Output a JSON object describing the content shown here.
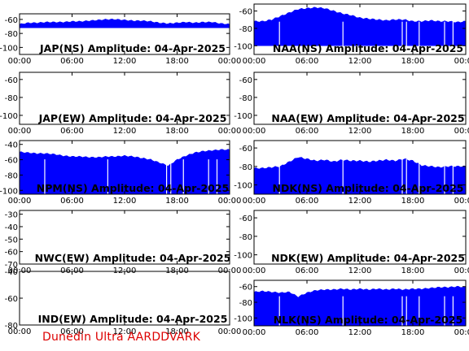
{
  "footer": "Dunedin Ultra AARDDVARK",
  "colors": {
    "trace": "#0000ff",
    "axis": "#000000",
    "footer": "#dd0000"
  },
  "chart_data": [
    {
      "type": "area",
      "title": "JAP(NS) Amplitude: 04-Apr-2025",
      "xlabel": "",
      "ylabel": "",
      "xticks": [
        "00:00",
        "06:00",
        "12:00",
        "18:00",
        "00:00"
      ],
      "yticks": [
        -60,
        -80,
        -100
      ],
      "ylim": [
        -110,
        -52
      ],
      "x": [
        0,
        1,
        2,
        3,
        4,
        5,
        6,
        7,
        8,
        9,
        10,
        11,
        12,
        13,
        14,
        15,
        16,
        17,
        18,
        19,
        20,
        21,
        22,
        23,
        24
      ],
      "y": [
        -67,
        -65,
        -65,
        -64,
        -64,
        -64,
        -63,
        -63,
        -62,
        -61,
        -60,
        -60,
        -61,
        -62,
        -62,
        -63,
        -65,
        -66,
        -65,
        -64,
        -65,
        -64,
        -64,
        -66,
        -67
      ],
      "lower": -72,
      "has_data": true
    },
    {
      "type": "area",
      "title": "NAA(NS) Amplitude: 04-Apr-2025",
      "xlabel": "",
      "ylabel": "",
      "xticks": [
        "00:00",
        "06:00",
        "12:00",
        "18:00",
        "00:00"
      ],
      "yticks": [
        -60,
        -80,
        -100
      ],
      "ylim": [
        -110,
        -52
      ],
      "x": [
        0,
        1,
        2,
        3,
        4,
        5,
        6,
        7,
        8,
        9,
        10,
        11,
        12,
        13,
        14,
        15,
        16,
        17,
        18,
        19,
        20,
        21,
        22,
        23,
        24
      ],
      "y": [
        -72,
        -72,
        -70,
        -66,
        -62,
        -58,
        -57,
        -56,
        -57,
        -60,
        -63,
        -65,
        -68,
        -69,
        -70,
        -71,
        -70,
        -70,
        -72,
        -72,
        -71,
        -72,
        -72,
        -73,
        -72
      ],
      "lower": -100,
      "has_data": true
    },
    {
      "type": "area",
      "title": "JAP(EW) Amplitude: 04-Apr-2025",
      "xlabel": "",
      "ylabel": "",
      "xticks": [
        "00:00",
        "06:00",
        "12:00",
        "18:00",
        "00:00"
      ],
      "yticks": [
        -60,
        -80,
        -100
      ],
      "ylim": [
        -110,
        -52
      ],
      "x": [],
      "y": [],
      "lower": -110,
      "has_data": false
    },
    {
      "type": "area",
      "title": "NAA(EW) Amplitude: 04-Apr-2025",
      "xlabel": "",
      "ylabel": "",
      "xticks": [
        "00:00",
        "06:00",
        "12:00",
        "18:00",
        "00:00"
      ],
      "yticks": [
        -60,
        -80,
        -100
      ],
      "ylim": [
        -110,
        -52
      ],
      "x": [],
      "y": [],
      "lower": -110,
      "has_data": false
    },
    {
      "type": "area",
      "title": "NPM(NS) Amplitude: 04-Apr-2025",
      "xlabel": "",
      "ylabel": "",
      "xticks": [
        "00:00",
        "06:00",
        "12:00",
        "18:00",
        "00:00"
      ],
      "yticks": [
        -40,
        -60,
        -80,
        -100
      ],
      "ylim": [
        -105,
        -35
      ],
      "x": [
        0,
        1,
        2,
        3,
        4,
        5,
        6,
        7,
        8,
        9,
        10,
        11,
        12,
        13,
        14,
        15,
        16,
        17,
        18,
        19,
        20,
        21,
        22,
        23,
        24
      ],
      "y": [
        -50,
        -51,
        -52,
        -52,
        -53,
        -55,
        -56,
        -56,
        -57,
        -57,
        -56,
        -56,
        -55,
        -56,
        -58,
        -60,
        -64,
        -68,
        -60,
        -55,
        -51,
        -49,
        -48,
        -47,
        -47
      ],
      "lower": -105,
      "has_data": true
    },
    {
      "type": "area",
      "title": "NDK(NS) Amplitude: 04-Apr-2025",
      "xlabel": "",
      "ylabel": "",
      "xticks": [
        "00:00",
        "06:00",
        "12:00",
        "18:00",
        "00:00"
      ],
      "yticks": [
        -60,
        -80,
        -100
      ],
      "ylim": [
        -110,
        -52
      ],
      "x": [
        0,
        1,
        2,
        3,
        4,
        5,
        6,
        7,
        8,
        9,
        10,
        11,
        12,
        13,
        14,
        15,
        16,
        17,
        18,
        19,
        20,
        21,
        22,
        23,
        24
      ],
      "y": [
        -82,
        -82,
        -81,
        -80,
        -75,
        -70,
        -72,
        -74,
        -73,
        -75,
        -73,
        -74,
        -74,
        -75,
        -74,
        -73,
        -74,
        -72,
        -74,
        -79,
        -80,
        -81,
        -80,
        -80,
        -80
      ],
      "lower": -110,
      "has_data": true
    },
    {
      "type": "area",
      "title": "NWC(EW) Amplitude: 04-Apr-2025",
      "xlabel": "",
      "ylabel": "",
      "xticks": [
        "00:00",
        "06:00",
        "12:00",
        "18:00",
        "00:00"
      ],
      "yticks": [
        -30,
        -40,
        -50,
        -60,
        -70
      ],
      "ylim": [
        -70,
        -27
      ],
      "x": [],
      "y": [],
      "lower": -70,
      "has_data": false
    },
    {
      "type": "area",
      "title": "NDK(EW) Amplitude: 04-Apr-2025",
      "xlabel": "",
      "ylabel": "",
      "xticks": [
        "00:00",
        "06:00",
        "12:00",
        "18:00",
        "00:00"
      ],
      "yticks": [
        -60,
        -80,
        -100
      ],
      "ylim": [
        -110,
        -52
      ],
      "x": [],
      "y": [],
      "lower": -110,
      "has_data": false
    },
    {
      "type": "area",
      "title": "IND(EW) Amplitude: 04-Apr-2025",
      "xlabel": "",
      "ylabel": "",
      "xticks": [
        "00:00",
        "06:00",
        "12:00",
        "18:00",
        "00:00"
      ],
      "yticks": [
        -40,
        -60,
        -80
      ],
      "ylim": [
        -80,
        -40
      ],
      "x": [],
      "y": [],
      "lower": -80,
      "has_data": false
    },
    {
      "type": "area",
      "title": "NLK(NS) Amplitude: 04-Apr-2025",
      "xlabel": "",
      "ylabel": "",
      "xticks": [
        "00:00",
        "06:00",
        "12:00",
        "18:00",
        "00:00"
      ],
      "yticks": [
        -60,
        -80,
        -100
      ],
      "ylim": [
        -110,
        -52
      ],
      "x": [
        0,
        1,
        2,
        3,
        4,
        5,
        6,
        7,
        8,
        9,
        10,
        11,
        12,
        13,
        14,
        15,
        16,
        17,
        18,
        19,
        20,
        21,
        22,
        23,
        24
      ],
      "y": [
        -67,
        -66,
        -67,
        -68,
        -67,
        -73,
        -68,
        -65,
        -64,
        -64,
        -63,
        -64,
        -63,
        -64,
        -63,
        -64,
        -63,
        -64,
        -63,
        -63,
        -62,
        -61,
        -61,
        -60,
        -61
      ],
      "lower": -110,
      "has_data": true
    }
  ]
}
